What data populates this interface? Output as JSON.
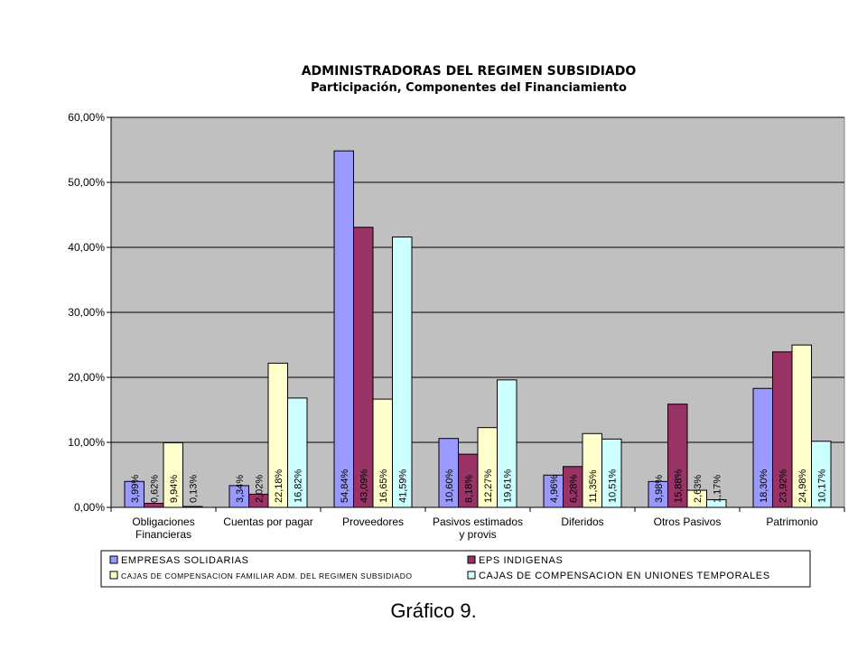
{
  "chart_data": {
    "type": "bar",
    "title": "ADMINISTRADORAS DEL REGIMEN SUBSIDIADO",
    "subtitle": "Participación, Componentes del Financiamiento",
    "categories": [
      [
        "Obligaciones",
        "Financieras"
      ],
      [
        "Cuentas por pagar"
      ],
      [
        "Proveedores"
      ],
      [
        "Pasivos estimados",
        "y provis"
      ],
      [
        "Diferidos"
      ],
      [
        "Otros Pasivos"
      ],
      [
        "Patrimonio"
      ]
    ],
    "ylim": [
      0,
      60
    ],
    "yticks": [
      0,
      10,
      20,
      30,
      40,
      50,
      60
    ],
    "ytick_labels": [
      "0,00%",
      "10,00%",
      "20,00%",
      "30,00%",
      "40,00%",
      "50,00%",
      "60,00%"
    ],
    "plot_background": "#c0c0c0",
    "grid": true,
    "legend_position": "bottom",
    "series": [
      {
        "name": "EMPRESAS SOLIDARIAS",
        "color": "#9999ff",
        "values": [
          3.99,
          3.34,
          54.84,
          10.6,
          4.96,
          3.98,
          18.3
        ],
        "labels": [
          "3,99%",
          "3,34%",
          "54,84%",
          "10,60%",
          "4,96%",
          "3,98%",
          "18,30%"
        ]
      },
      {
        "name": "EPS INDIGENAS",
        "color": "#993366",
        "values": [
          0.62,
          2.02,
          43.09,
          8.18,
          6.28,
          15.88,
          23.92
        ],
        "labels": [
          "0,62%",
          "2,02%",
          "43,09%",
          "8,18%",
          "6,28%",
          "15,88%",
          "23,92%"
        ]
      },
      {
        "name": "CAJAS DE COMPENSACION FAMILIAR ADM. DEL REGIMEN SUBSIDIADO",
        "color": "#ffffcc",
        "values": [
          9.94,
          22.18,
          16.65,
          12.27,
          11.35,
          2.63,
          24.98
        ],
        "labels": [
          "9,94%",
          "22,18%",
          "16,65%",
          "12,27%",
          "11,35%",
          "2,63%",
          "24,98%"
        ]
      },
      {
        "name": "CAJAS DE COMPENSACION EN UNIONES TEMPORALES",
        "color": "#ccffff",
        "values": [
          0.13,
          16.82,
          41.59,
          19.61,
          10.51,
          1.17,
          10.17
        ],
        "labels": [
          "0,13%",
          "16,82%",
          "41,59%",
          "19,61%",
          "10,51%",
          "1,17%",
          "10,17%"
        ]
      }
    ]
  },
  "caption": "Gráfico 9."
}
